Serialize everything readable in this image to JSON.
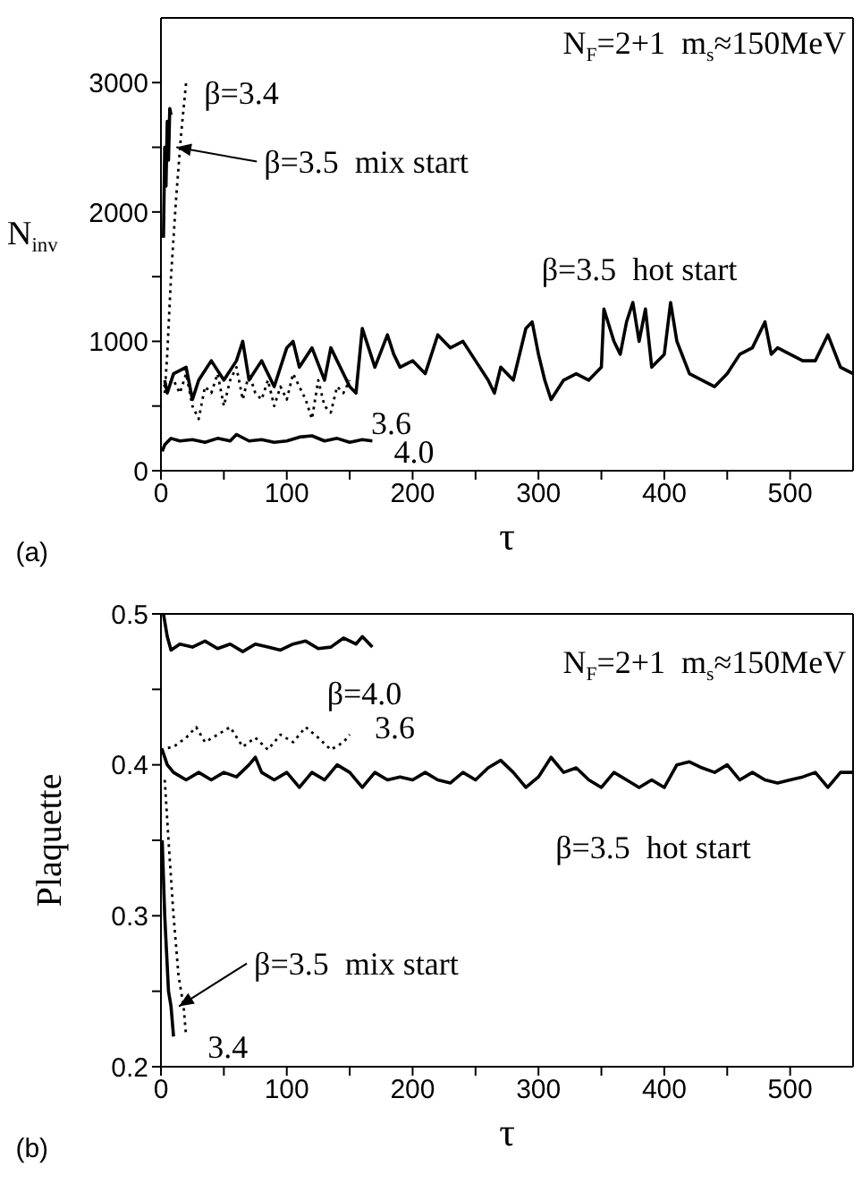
{
  "chart_data": [
    {
      "type": "line",
      "xlabel": "τ",
      "ylabel": "N$_{inv}$",
      "xlim": [
        0,
        550
      ],
      "ylim": [
        0,
        3500
      ],
      "xticks": [
        0,
        {
          "value": 50,
          "label": null
        },
        100,
        {
          "value": 150,
          "label": null
        },
        200,
        {
          "value": 250,
          "label": null
        },
        300,
        {
          "value": 350,
          "label": null
        },
        400,
        {
          "value": 450,
          "label": null
        },
        500
      ],
      "yticks": [
        0,
        {
          "value": 500,
          "label": null
        },
        1000,
        {
          "value": 1500,
          "label": null
        },
        2000,
        {
          "value": 2500,
          "label": null
        },
        3000
      ],
      "series": [
        {
          "color": "#000000",
          "line_style": "solid",
          "x": [
            3,
            5,
            10,
            20,
            25,
            30,
            40,
            50,
            60,
            65,
            70,
            80,
            90,
            100,
            105,
            110,
            120,
            130,
            135,
            140,
            150,
            155,
            160,
            165,
            170,
            180,
            185,
            190,
            200,
            210,
            220,
            230,
            240,
            250,
            260,
            265,
            270,
            280,
            290,
            295,
            300,
            305,
            310,
            320,
            330,
            340,
            350,
            352,
            360,
            365,
            370,
            375,
            380,
            385,
            390,
            400,
            405,
            410,
            420,
            430,
            440,
            450,
            460,
            470,
            480,
            485,
            490,
            500,
            510,
            520,
            530,
            540,
            550
          ],
          "values": [
            700,
            600,
            750,
            800,
            550,
            700,
            850,
            700,
            850,
            1000,
            700,
            850,
            650,
            950,
            1000,
            800,
            950,
            700,
            950,
            850,
            650,
            600,
            1100,
            950,
            800,
            1050,
            900,
            800,
            850,
            750,
            1050,
            950,
            1000,
            850,
            700,
            600,
            800,
            700,
            1100,
            1150,
            900,
            700,
            550,
            700,
            750,
            700,
            800,
            1250,
            1000,
            900,
            1150,
            1300,
            1000,
            1250,
            800,
            900,
            1300,
            1000,
            750,
            700,
            650,
            750,
            900,
            950,
            1150,
            900,
            950,
            900,
            850,
            850,
            1050,
            800,
            750
          ]
        },
        {
          "color": "#000000",
          "line_style": "solid",
          "x": [
            2,
            3,
            4,
            5,
            6,
            7,
            8
          ],
          "values": [
            1800,
            2500,
            2200,
            2700,
            2400,
            2800,
            2750
          ]
        },
        {
          "color": "#000000",
          "line_style": "dotted",
          "x": [
            3,
            5,
            8,
            12,
            16,
            20
          ],
          "values": [
            600,
            900,
            1500,
            2100,
            2600,
            3000
          ]
        },
        {
          "color": "#000000",
          "line_style": "dotted",
          "x": [
            2,
            10,
            15,
            20,
            25,
            30,
            35,
            40,
            45,
            50,
            55,
            60,
            65,
            70,
            75,
            80,
            85,
            90,
            95,
            100,
            105,
            110,
            115,
            120,
            125,
            130,
            135,
            140,
            145,
            150
          ],
          "values": [
            650,
            700,
            600,
            750,
            500,
            400,
            650,
            600,
            750,
            500,
            700,
            800,
            550,
            750,
            600,
            550,
            700,
            500,
            650,
            550,
            750,
            650,
            550,
            400,
            700,
            500,
            450,
            650,
            600,
            700
          ]
        },
        {
          "color": "#000000",
          "line_style": "solid",
          "x": [
            1,
            3,
            8,
            15,
            25,
            35,
            45,
            55,
            60,
            70,
            80,
            90,
            100,
            110,
            120,
            130,
            140,
            150,
            160,
            168
          ],
          "values": [
            150,
            200,
            250,
            230,
            240,
            220,
            250,
            230,
            280,
            230,
            240,
            220,
            230,
            260,
            270,
            230,
            250,
            220,
            240,
            230
          ]
        }
      ],
      "annotations": [
        "N$_{F}$=2+1  m$_{s}$≈150MeV",
        "(a)",
        "β=3.5  hot start",
        {
          "text": "β=3.4",
          "x": 20,
          "y": 3000
        },
        {
          "text": "β=3.5  mix start",
          "x": 8,
          "y": 2500
        },
        {
          "text": "3.6",
          "x": 150,
          "y": 700
        },
        {
          "text": "4.0",
          "x": 168,
          "y": 230
        }
      ]
    },
    {
      "type": "line",
      "xlabel": "τ",
      "ylabel": "Plaquette",
      "xlim": [
        0,
        550
      ],
      "ylim": [
        0.2,
        0.5
      ],
      "xticks": [
        0,
        {
          "value": 50,
          "label": null
        },
        100,
        {
          "value": 150,
          "label": null
        },
        200,
        {
          "value": 250,
          "label": null
        },
        300,
        {
          "value": 350,
          "label": null
        },
        400,
        {
          "value": 450,
          "label": null
        },
        500
      ],
      "yticks": [
        0.2,
        {
          "value": 0.25,
          "label": null
        },
        0.3,
        {
          "value": 0.35,
          "label": null
        },
        0.4,
        {
          "value": 0.45,
          "label": null
        },
        0.5
      ],
      "series": [
        {
          "color": "#000000",
          "line_style": "solid",
          "x": [
            1,
            5,
            10,
            20,
            30,
            40,
            50,
            60,
            70,
            75,
            80,
            90,
            100,
            110,
            120,
            130,
            140,
            150,
            160,
            170,
            180,
            190,
            200,
            210,
            220,
            230,
            240,
            250,
            260,
            270,
            280,
            290,
            300,
            310,
            320,
            330,
            340,
            350,
            360,
            370,
            380,
            390,
            400,
            410,
            420,
            430,
            440,
            450,
            460,
            470,
            480,
            490,
            500,
            510,
            520,
            530,
            540,
            550
          ],
          "values": [
            0.41,
            0.4,
            0.395,
            0.39,
            0.395,
            0.39,
            0.395,
            0.392,
            0.4,
            0.405,
            0.395,
            0.39,
            0.395,
            0.385,
            0.395,
            0.39,
            0.4,
            0.395,
            0.385,
            0.395,
            0.39,
            0.392,
            0.39,
            0.395,
            0.39,
            0.388,
            0.395,
            0.39,
            0.398,
            0.403,
            0.395,
            0.385,
            0.392,
            0.405,
            0.395,
            0.398,
            0.39,
            0.385,
            0.395,
            0.39,
            0.385,
            0.39,
            0.385,
            0.4,
            0.402,
            0.398,
            0.395,
            0.4,
            0.39,
            0.395,
            0.39,
            0.388,
            0.39,
            0.392,
            0.395,
            0.385,
            0.395,
            0.395
          ]
        },
        {
          "color": "#000000",
          "line_style": "solid",
          "x": [
            1,
            3,
            6,
            8,
            10
          ],
          "values": [
            0.35,
            0.3,
            0.25,
            0.24,
            0.22
          ]
        },
        {
          "color": "#000000",
          "line_style": "dotted",
          "x": [
            3,
            6,
            10,
            14,
            18,
            20
          ],
          "values": [
            0.39,
            0.35,
            0.3,
            0.26,
            0.24,
            0.22
          ]
        },
        {
          "color": "#000000",
          "line_style": "dotted",
          "x": [
            0,
            10,
            20,
            28,
            35,
            45,
            55,
            65,
            75,
            85,
            95,
            105,
            115,
            125,
            135,
            145,
            150
          ],
          "values": [
            0.41,
            0.412,
            0.418,
            0.425,
            0.415,
            0.42,
            0.425,
            0.412,
            0.418,
            0.41,
            0.42,
            0.415,
            0.425,
            0.418,
            0.41,
            0.415,
            0.42
          ]
        },
        {
          "color": "#000000",
          "line_style": "solid",
          "x": [
            2,
            5,
            8,
            15,
            25,
            35,
            45,
            55,
            65,
            75,
            85,
            95,
            105,
            115,
            125,
            135,
            145,
            155,
            160,
            168
          ],
          "values": [
            0.5,
            0.485,
            0.476,
            0.48,
            0.478,
            0.482,
            0.477,
            0.48,
            0.475,
            0.48,
            0.478,
            0.476,
            0.48,
            0.482,
            0.477,
            0.478,
            0.484,
            0.48,
            0.485,
            0.478
          ]
        }
      ],
      "annotations": [
        "N$_{F}$=2+1  m$_{s}$≈150MeV",
        "(b)",
        "β=3.5  hot start",
        "β=4.0",
        {
          "text": "3.6",
          "x": 150,
          "y": 0.42
        },
        {
          "text": "β=3.5  mix start",
          "x": 10,
          "y": 0.24
        },
        {
          "text": "3.4",
          "x": 20,
          "y": 0.22
        }
      ]
    }
  ]
}
